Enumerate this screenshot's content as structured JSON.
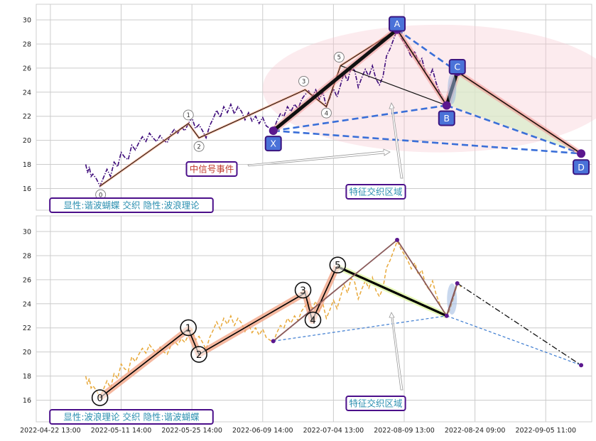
{
  "colors": {
    "panel_background": "#ffffff",
    "grid": "#cccccc",
    "price_top": "#3d0a7a",
    "price_bottom": "#e8a93a",
    "pattern_box_fill": "#4a72d8",
    "pattern_box_edge": "#3b1580",
    "dashed_blue": "#3a6fd8",
    "zone_pink": "#f7c6cf",
    "zone_green": "#d8ecc9",
    "wave_band": "#f2a080",
    "label_edge": "#4b0f8a",
    "red_text": "#c0392b",
    "teal_text": "#2b8fb0"
  },
  "chart_data": [
    {
      "type": "line",
      "panel": "top",
      "x_tick_labels": [],
      "ylim": [
        14.2,
        31.3
      ],
      "y_ticks": [
        16,
        18,
        20,
        22,
        24,
        26,
        28,
        30
      ],
      "grid": true,
      "x_range_days": [
        -2,
        140
      ],
      "price_series": [
        [
          0,
          18.0
        ],
        [
          0.5,
          17.3
        ],
        [
          1,
          17.8
        ],
        [
          1.5,
          17.0
        ],
        [
          2,
          17.2
        ],
        [
          3,
          16.8
        ],
        [
          4,
          16.2
        ],
        [
          5,
          16.9
        ],
        [
          6,
          17.6
        ],
        [
          7,
          17.0
        ],
        [
          8,
          18.2
        ],
        [
          9,
          17.8
        ],
        [
          10,
          19.0
        ],
        [
          11,
          18.6
        ],
        [
          12,
          18.4
        ],
        [
          13,
          19.6
        ],
        [
          14,
          19.2
        ],
        [
          15,
          19.8
        ],
        [
          16,
          20.3
        ],
        [
          17,
          19.9
        ],
        [
          18,
          20.6
        ],
        [
          19,
          20.2
        ],
        [
          20,
          19.9
        ],
        [
          21,
          20.4
        ],
        [
          22,
          20.0
        ],
        [
          23,
          19.8
        ],
        [
          24,
          20.5
        ],
        [
          25,
          20.9
        ],
        [
          26,
          20.6
        ],
        [
          27,
          21.1
        ],
        [
          28,
          20.8
        ],
        [
          29,
          21.4
        ],
        [
          30,
          21.9
        ],
        [
          31,
          21.0
        ],
        [
          32,
          21.3
        ],
        [
          33,
          20.8
        ],
        [
          34,
          20.2
        ],
        [
          35,
          21.2
        ],
        [
          36,
          21.8
        ],
        [
          37,
          22.5
        ],
        [
          38,
          21.9
        ],
        [
          39,
          22.8
        ],
        [
          40,
          22.3
        ],
        [
          41,
          23.0
        ],
        [
          42,
          22.2
        ],
        [
          43,
          22.8
        ],
        [
          44,
          22.4
        ],
        [
          45,
          21.7
        ],
        [
          46,
          22.3
        ],
        [
          47,
          21.6
        ],
        [
          48,
          22.0
        ],
        [
          49,
          21.4
        ],
        [
          50,
          21.9
        ],
        [
          51,
          21.2
        ],
        [
          52,
          21.0
        ],
        [
          53,
          20.8
        ],
        [
          54,
          21.6
        ],
        [
          55,
          22.2
        ],
        [
          56,
          22.0
        ],
        [
          57,
          22.8
        ],
        [
          58,
          22.4
        ],
        [
          59,
          23.0
        ],
        [
          60,
          22.6
        ],
        [
          61,
          23.4
        ],
        [
          62,
          23.8
        ],
        [
          63,
          24.1
        ],
        [
          64,
          23.6
        ],
        [
          65,
          24.2
        ],
        [
          66,
          23.4
        ],
        [
          67,
          24.0
        ],
        [
          68,
          22.8
        ],
        [
          69,
          23.5
        ],
        [
          70,
          24.3
        ],
        [
          71,
          23.6
        ],
        [
          72,
          24.6
        ],
        [
          73,
          25.6
        ],
        [
          74,
          24.9
        ],
        [
          75,
          26.1
        ],
        [
          76,
          25.8
        ],
        [
          77,
          24.4
        ],
        [
          78,
          25.2
        ],
        [
          79,
          25.9
        ],
        [
          80,
          25.3
        ],
        [
          81,
          26.2
        ],
        [
          82,
          25.1
        ],
        [
          83,
          24.6
        ],
        [
          84,
          25.3
        ],
        [
          85,
          27.0
        ],
        [
          86,
          27.6
        ],
        [
          87,
          28.4
        ],
        [
          88,
          29.2
        ],
        [
          89,
          28.6
        ],
        [
          90,
          28.1
        ],
        [
          91,
          27.6
        ],
        [
          92,
          26.9
        ],
        [
          93,
          27.4
        ],
        [
          94,
          26.4
        ],
        [
          95,
          26.8
        ],
        [
          96,
          25.6
        ],
        [
          97,
          25.2
        ],
        [
          98,
          25.9
        ],
        [
          99,
          24.8
        ],
        [
          100,
          24.0
        ],
        [
          101,
          23.4
        ],
        [
          102,
          22.9
        ],
        [
          103,
          23.6
        ],
        [
          104,
          24.5
        ],
        [
          105,
          25.7
        ],
        [
          106,
          25.4
        ]
      ],
      "zigzag_line": [
        [
          4,
          16.2
        ],
        [
          29,
          21.4
        ],
        [
          32,
          20.2
        ],
        [
          62,
          24.2
        ],
        [
          68,
          22.8
        ],
        [
          72,
          26.2
        ],
        [
          88,
          29.2
        ],
        [
          102,
          22.9
        ],
        [
          105,
          25.7
        ],
        [
          140,
          18.9
        ]
      ],
      "pattern_lines": [
        [
          53,
          20.8
        ],
        [
          88,
          29.2
        ],
        [
          102,
          22.9
        ],
        [
          105,
          25.7
        ],
        [
          140,
          18.9
        ]
      ],
      "dashed_links": [
        [
          [
            53,
            20.8
          ],
          [
            102,
            22.9
          ]
        ],
        [
          [
            53,
            20.8
          ],
          [
            140,
            18.9
          ]
        ],
        [
          [
            102,
            22.9
          ],
          [
            140,
            18.9
          ]
        ],
        [
          [
            88,
            29.2
          ],
          [
            105,
            25.7
          ]
        ]
      ],
      "zone_ellipse": {
        "cx": 100,
        "cy": 24.3,
        "rx": 50,
        "ry": 5.3
      },
      "green_zone": [
        [
          105,
          25.7
        ],
        [
          140,
          18.9
        ],
        [
          103,
          22.9
        ]
      ],
      "pattern_points": [
        {
          "label": "X",
          "x": 53,
          "y": 20.8
        },
        {
          "label": "A",
          "x": 88,
          "y": 29.2
        },
        {
          "label": "B",
          "x": 102,
          "y": 22.9
        },
        {
          "label": "C",
          "x": 105,
          "y": 25.7
        },
        {
          "label": "D",
          "x": 140,
          "y": 18.9
        }
      ],
      "wave_points": [
        {
          "label": "0",
          "x": 4,
          "y": 16.2
        },
        {
          "label": "1",
          "x": 29,
          "y": 21.4
        },
        {
          "label": "2",
          "x": 32,
          "y": 20.2
        },
        {
          "label": "3",
          "x": 62,
          "y": 24.2
        },
        {
          "label": "4",
          "x": 68,
          "y": 22.8
        },
        {
          "label": "5",
          "x": 72,
          "y": 26.2
        }
      ],
      "annotations": [
        {
          "text": "中信号事件",
          "x": 45,
          "y": 17.4
        },
        {
          "text": "特征交织区域",
          "x": 90,
          "y": 15.7
        },
        {
          "text": "显性:谐波蝴蝶 交织 隐性:波浪理论",
          "x": 19,
          "y": 14.9
        }
      ]
    },
    {
      "type": "line",
      "panel": "bottom",
      "x_tick_labels": [
        "2022-04-22 13:00",
        "2022-05-11 14:00",
        "2022-05-25 14:00",
        "2022-06-09 14:00",
        "2022-07-04 13:00",
        "2022-08-09 13:00",
        "2022-08-24 09:00",
        "2022-09-05 11:00"
      ],
      "x_tick_days": [
        -10,
        10,
        30,
        50,
        70,
        90,
        110,
        130
      ],
      "ylim": [
        14.2,
        31.3
      ],
      "y_ticks": [
        16,
        18,
        20,
        22,
        24,
        26,
        28,
        30
      ],
      "grid": true,
      "wave_points": [
        {
          "label": "0",
          "x": 4,
          "y": 16.2
        },
        {
          "label": "1",
          "x": 29,
          "y": 21.9
        },
        {
          "label": "2",
          "x": 32,
          "y": 19.8
        },
        {
          "label": "3",
          "x": 62,
          "y": 24.9
        },
        {
          "label": "4",
          "x": 64,
          "y": 22.6
        },
        {
          "label": "5",
          "x": 71,
          "y": 27.1
        }
      ],
      "pattern_points": [
        {
          "x": 53,
          "y": 20.9
        },
        {
          "x": 88,
          "y": 29.3
        },
        {
          "x": 102,
          "y": 23.0
        },
        {
          "x": 105,
          "y": 25.7
        },
        {
          "x": 140,
          "y": 18.9
        }
      ],
      "annotations": [
        {
          "text": "特征交织区域",
          "x": 90,
          "y": 15.7
        },
        {
          "text": "显性:波浪理论 交织 隐性:谐波蝴蝶",
          "x": 19,
          "y": 14.9
        }
      ]
    }
  ]
}
